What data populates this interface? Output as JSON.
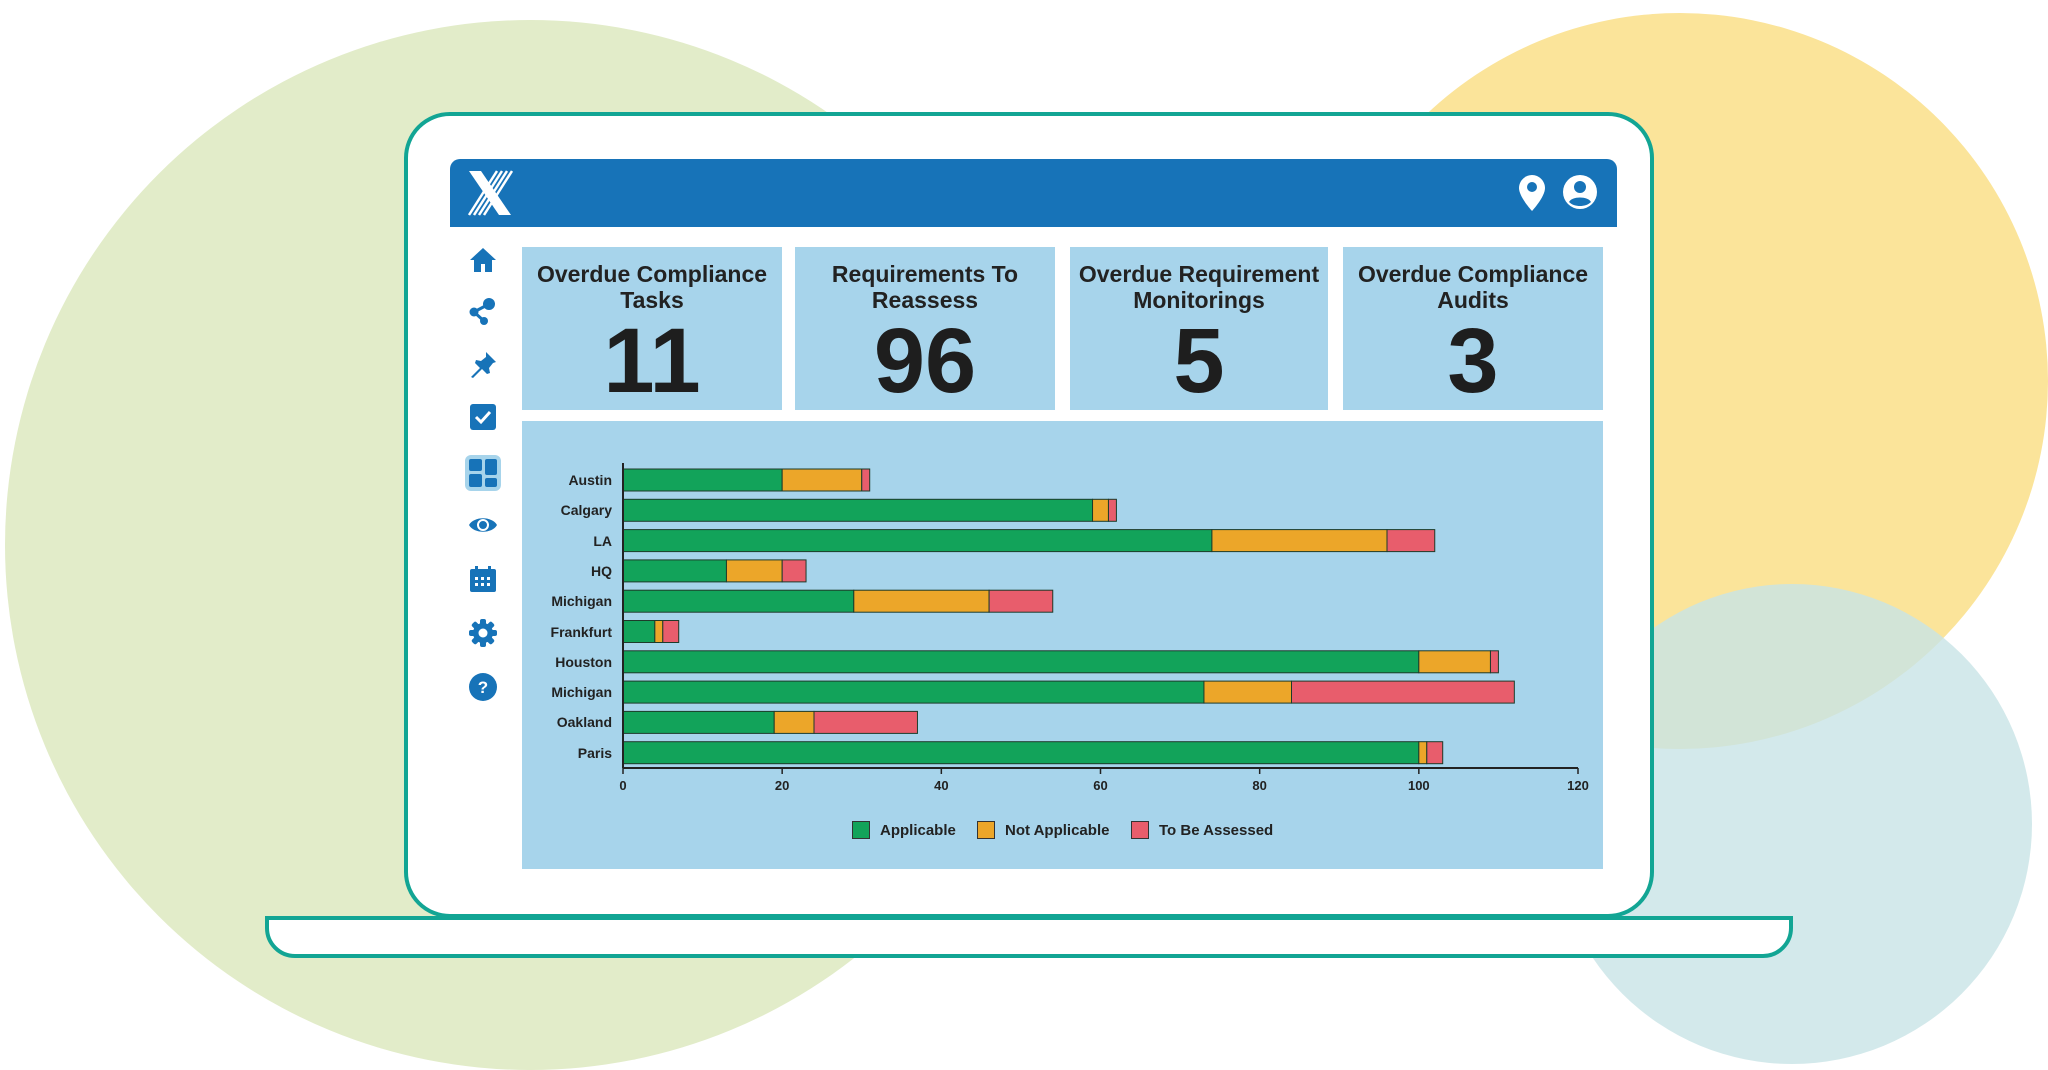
{
  "header": {
    "logo": "X",
    "icons": [
      "location-pin-icon",
      "user-account-icon"
    ]
  },
  "sidebar": {
    "items": [
      "home-icon",
      "share-icon",
      "pin-icon",
      "checkbox-icon",
      "dashboard-icon",
      "eye-icon",
      "calendar-icon",
      "gear-icon",
      "help-icon"
    ],
    "active": "dashboard-icon"
  },
  "cards": [
    {
      "title": "Overdue Compliance Tasks",
      "value": "11"
    },
    {
      "title": "Requirements To Reassess",
      "value": "96"
    },
    {
      "title": "Overdue Requirement Monitorings",
      "value": "5"
    },
    {
      "title": "Overdue Compliance Audits",
      "value": "3"
    }
  ],
  "chart_data": {
    "type": "bar",
    "orientation": "horizontal",
    "stacked": true,
    "categories": [
      "Austin",
      "Calgary",
      "LA",
      "HQ",
      "Michigan",
      "Frankfurt",
      "Houston",
      "Michigan",
      "Oakland",
      "Paris"
    ],
    "series": [
      {
        "name": "Applicable",
        "color": "#12a35a",
        "values": [
          20,
          59,
          74,
          13,
          29,
          4,
          100,
          73,
          19,
          100
        ]
      },
      {
        "name": "Not Applicable",
        "color": "#eca629",
        "values": [
          10,
          2,
          22,
          7,
          17,
          1,
          9,
          11,
          5,
          1
        ]
      },
      {
        "name": "To Be Assessed",
        "color": "#e85d6c",
        "values": [
          1,
          1,
          6,
          3,
          8,
          2,
          1,
          28,
          13,
          2
        ]
      }
    ],
    "xlim": [
      0,
      120
    ],
    "xticks": [
      "0",
      "20",
      "40",
      "60",
      "80",
      "100",
      "120"
    ],
    "grid": false,
    "legend": "bottom"
  }
}
